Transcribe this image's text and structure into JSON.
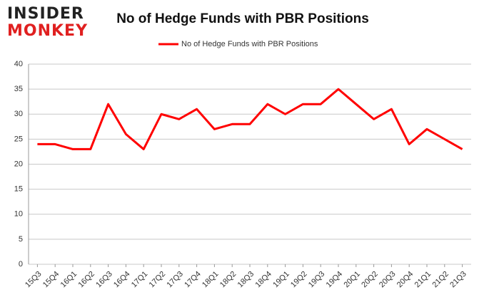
{
  "logo": {
    "line1": "INSIDER",
    "line2": "MONKEY"
  },
  "chart_data": {
    "type": "line",
    "title": "No of Hedge Funds with PBR Positions",
    "categories": [
      "15Q3",
      "15Q4",
      "16Q1",
      "16Q2",
      "16Q3",
      "16Q4",
      "17Q1",
      "17Q2",
      "17Q3",
      "17Q4",
      "18Q1",
      "18Q2",
      "18Q3",
      "18Q4",
      "19Q1",
      "19Q2",
      "19Q3",
      "19Q4",
      "20Q1",
      "20Q2",
      "20Q3",
      "20Q4",
      "21Q1",
      "21Q2",
      "21Q3"
    ],
    "series": [
      {
        "name": "No of Hedge Funds with PBR Positions",
        "color": "#ff0000",
        "values": [
          24,
          24,
          23,
          23,
          32,
          26,
          23,
          30,
          29,
          31,
          27,
          28,
          28,
          32,
          30,
          32,
          32,
          35,
          32,
          29,
          31,
          24,
          27,
          25,
          23
        ]
      }
    ],
    "ylim": [
      0,
      40
    ],
    "yticks": [
      0,
      5,
      10,
      15,
      20,
      25,
      30,
      35,
      40
    ],
    "grid": true,
    "legend": "top"
  }
}
